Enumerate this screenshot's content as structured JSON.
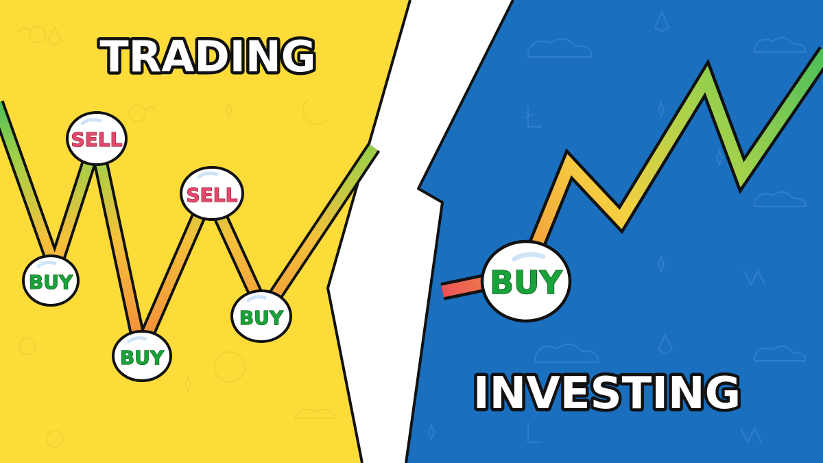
{
  "left_panel": {
    "title": "TRADING",
    "background_color": "#fddc3a",
    "signals": [
      "SELL",
      "SELL",
      "BUY",
      "BUY",
      "BUY"
    ]
  },
  "right_panel": {
    "title": "INVESTING",
    "background_color": "#1a6fbf",
    "signals": [
      "BUY"
    ]
  },
  "colors": {
    "buy": "#1aa23a",
    "sell": "#e2496a",
    "title_fill": "#ffffff",
    "outline": "#111111",
    "line_start": "#e8475e",
    "line_mid": "#f6b132",
    "line_end": "#4fbf5a"
  },
  "icons": [
    "winged-coin-icon",
    "cloud-icon",
    "sparkle-icon",
    "ethereum-icon",
    "bitcoin-icon",
    "litecoin-icon",
    "magnet-icon"
  ]
}
